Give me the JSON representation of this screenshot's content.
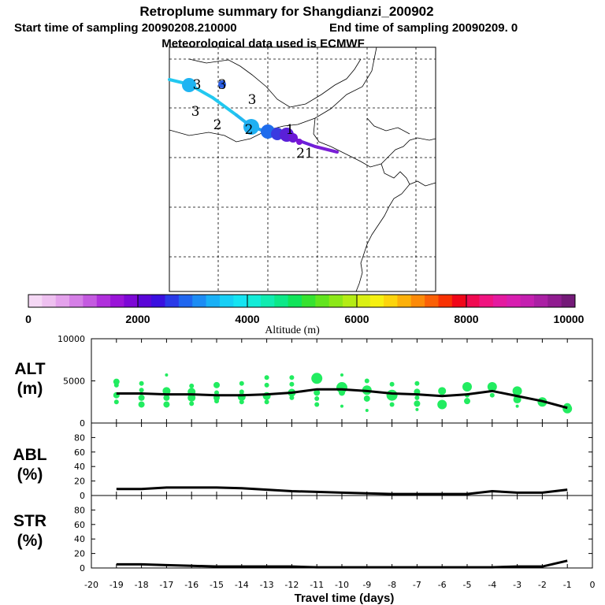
{
  "header": {
    "title": "Retroplume summary for Shangdianzi_200902",
    "start_label": "Start time of sampling 20090208.210000",
    "end_label": "End time of sampling 20090209.     0",
    "met_label": "Meteorological data used is ECMWF"
  },
  "map": {
    "track": [
      {
        "lon": 0,
        "lat": 0,
        "color": "#22c8f0"
      },
      {
        "lon": 1,
        "lat": 1,
        "color": "#7a1fd6"
      }
    ],
    "day_labels": [
      "3",
      "3",
      "3",
      "3",
      "2",
      "2",
      "1",
      "21"
    ],
    "colors": {
      "land_line": "#000000",
      "grid": "#000000"
    }
  },
  "colorbar": {
    "label": "Altitude (m)",
    "ticks": [
      "0",
      "2000",
      "4000",
      "6000",
      "8000",
      "10000"
    ],
    "colors": [
      "#f5d8f5",
      "#eec0f0",
      "#e4a2ec",
      "#d57fe6",
      "#c45ae0",
      "#b030dc",
      "#9a14d8",
      "#7d08d6",
      "#5a06d8",
      "#3a10e0",
      "#2a3ae8",
      "#1f66ef",
      "#1c8cf4",
      "#19b0f6",
      "#17cff5",
      "#15e4f2",
      "#12ecd8",
      "#10ecb0",
      "#0ce888",
      "#10e45a",
      "#36e230",
      "#62e41e",
      "#8ce818",
      "#b4ec14",
      "#daf012",
      "#f6f010",
      "#fcd40c",
      "#fcb00a",
      "#fc8a08",
      "#fa6006",
      "#f83204",
      "#f00618",
      "#f00a50",
      "#f01480",
      "#e41aa0",
      "#d81eb0",
      "#c420b0",
      "#aa20a4",
      "#901c90",
      "#741a78"
    ]
  },
  "chart_data": [
    {
      "type": "scatter+line",
      "panel": "ALT",
      "title": "ALT",
      "ylabel": "(m)",
      "xlabel": "Travel time (days)",
      "xlim": [
        -20,
        0
      ],
      "ylim": [
        0,
        10000
      ],
      "yticks": [
        0,
        5000,
        10000
      ],
      "x_ticks": [
        -20,
        -19,
        -18,
        -17,
        -16,
        -15,
        -14,
        -13,
        -12,
        -11,
        -10,
        -9,
        -8,
        -7,
        -6,
        -5,
        -4,
        -3,
        -2,
        -1,
        0
      ],
      "line": {
        "x": [
          -19,
          -18,
          -17,
          -16,
          -15,
          -14,
          -13,
          -12,
          -11,
          -10,
          -9,
          -8,
          -7,
          -6,
          -5,
          -4,
          -3,
          -2,
          -1
        ],
        "y": [
          3500,
          3500,
          3400,
          3400,
          3300,
          3300,
          3400,
          3600,
          4000,
          4000,
          3800,
          3500,
          3400,
          3200,
          3400,
          3800,
          3200,
          2600,
          1800
        ]
      },
      "dots": [
        {
          "x": -19,
          "y": 4900,
          "s": 4
        },
        {
          "x": -19,
          "y": 4500,
          "s": 3
        },
        {
          "x": -19,
          "y": 3300,
          "s": 4
        },
        {
          "x": -19,
          "y": 2500,
          "s": 3
        },
        {
          "x": -18,
          "y": 4700,
          "s": 3
        },
        {
          "x": -18,
          "y": 3900,
          "s": 3
        },
        {
          "x": -18,
          "y": 3000,
          "s": 4
        },
        {
          "x": -18,
          "y": 2200,
          "s": 4
        },
        {
          "x": -17,
          "y": 5700,
          "s": 2
        },
        {
          "x": -17,
          "y": 3800,
          "s": 5
        },
        {
          "x": -17,
          "y": 3000,
          "s": 4
        },
        {
          "x": -17,
          "y": 2200,
          "s": 4
        },
        {
          "x": -16,
          "y": 4400,
          "s": 3
        },
        {
          "x": -16,
          "y": 3700,
          "s": 5
        },
        {
          "x": -16,
          "y": 3000,
          "s": 5
        },
        {
          "x": -16,
          "y": 2300,
          "s": 3
        },
        {
          "x": -15,
          "y": 4500,
          "s": 4
        },
        {
          "x": -15,
          "y": 3600,
          "s": 3
        },
        {
          "x": -15,
          "y": 3000,
          "s": 4
        },
        {
          "x": -15,
          "y": 2600,
          "s": 3
        },
        {
          "x": -14,
          "y": 4700,
          "s": 3
        },
        {
          "x": -14,
          "y": 3700,
          "s": 3
        },
        {
          "x": -14,
          "y": 3100,
          "s": 5
        },
        {
          "x": -14,
          "y": 2500,
          "s": 3
        },
        {
          "x": -13,
          "y": 5400,
          "s": 3
        },
        {
          "x": -13,
          "y": 4500,
          "s": 3
        },
        {
          "x": -13,
          "y": 3200,
          "s": 5
        },
        {
          "x": -13,
          "y": 2500,
          "s": 3
        },
        {
          "x": -12,
          "y": 5400,
          "s": 3
        },
        {
          "x": -12,
          "y": 4600,
          "s": 3
        },
        {
          "x": -12,
          "y": 3600,
          "s": 5
        },
        {
          "x": -12,
          "y": 3000,
          "s": 3
        },
        {
          "x": -11,
          "y": 5300,
          "s": 7
        },
        {
          "x": -11,
          "y": 3600,
          "s": 4
        },
        {
          "x": -11,
          "y": 2900,
          "s": 3
        },
        {
          "x": -11,
          "y": 2200,
          "s": 3
        },
        {
          "x": -10,
          "y": 5700,
          "s": 2
        },
        {
          "x": -10,
          "y": 4200,
          "s": 7
        },
        {
          "x": -10,
          "y": 3600,
          "s": 4
        },
        {
          "x": -10,
          "y": 2000,
          "s": 2
        },
        {
          "x": -9,
          "y": 5000,
          "s": 3
        },
        {
          "x": -9,
          "y": 3900,
          "s": 6
        },
        {
          "x": -9,
          "y": 2900,
          "s": 4
        },
        {
          "x": -9,
          "y": 1500,
          "s": 2
        },
        {
          "x": -8,
          "y": 4600,
          "s": 3
        },
        {
          "x": -8,
          "y": 3300,
          "s": 7
        },
        {
          "x": -8,
          "y": 2200,
          "s": 3
        },
        {
          "x": -7,
          "y": 4700,
          "s": 3
        },
        {
          "x": -7,
          "y": 3700,
          "s": 4
        },
        {
          "x": -7,
          "y": 3000,
          "s": 3
        },
        {
          "x": -7,
          "y": 2300,
          "s": 4
        },
        {
          "x": -7,
          "y": 1600,
          "s": 2
        },
        {
          "x": -6,
          "y": 3800,
          "s": 5
        },
        {
          "x": -6,
          "y": 2200,
          "s": 6
        },
        {
          "x": -5,
          "y": 4300,
          "s": 6
        },
        {
          "x": -5,
          "y": 3300,
          "s": 3
        },
        {
          "x": -5,
          "y": 2600,
          "s": 4
        },
        {
          "x": -4,
          "y": 4300,
          "s": 6
        },
        {
          "x": -4,
          "y": 3300,
          "s": 3
        },
        {
          "x": -3,
          "y": 3800,
          "s": 6
        },
        {
          "x": -3,
          "y": 2800,
          "s": 5
        },
        {
          "x": -3,
          "y": 2000,
          "s": 2
        },
        {
          "x": -2,
          "y": 2500,
          "s": 6
        },
        {
          "x": -1,
          "y": 1700,
          "s": 6
        },
        {
          "x": -1,
          "y": 1900,
          "s": 5
        }
      ]
    },
    {
      "type": "line",
      "panel": "ABL",
      "title": "ABL",
      "ylabel": "(%)",
      "xlim": [
        -20,
        0
      ],
      "ylim": [
        0,
        100
      ],
      "yticks": [
        0,
        20,
        40,
        60,
        80
      ],
      "x": [
        -19,
        -18,
        -17,
        -16,
        -15,
        -14,
        -13,
        -12,
        -11,
        -10,
        -9,
        -8,
        -7,
        -6,
        -5,
        -4,
        -3,
        -2,
        -1
      ],
      "y": [
        9,
        9,
        11,
        11,
        11,
        10,
        8,
        6,
        5,
        4,
        3,
        2,
        2,
        2,
        2,
        6,
        4,
        4,
        8
      ]
    },
    {
      "type": "line",
      "panel": "STR",
      "title": "STR",
      "ylabel": "(%)",
      "xlim": [
        -20,
        0
      ],
      "ylim": [
        0,
        100
      ],
      "yticks": [
        0,
        20,
        40,
        60,
        80
      ],
      "x": [
        -19,
        -18,
        -17,
        -16,
        -15,
        -14,
        -13,
        -12,
        -11,
        -10,
        -9,
        -8,
        -7,
        -6,
        -5,
        -4,
        -3,
        -2,
        -1
      ],
      "y": [
        5,
        5,
        4,
        3,
        2,
        2,
        2,
        2,
        1,
        1,
        1,
        1,
        1,
        1,
        1,
        1,
        2,
        2,
        10
      ]
    }
  ]
}
